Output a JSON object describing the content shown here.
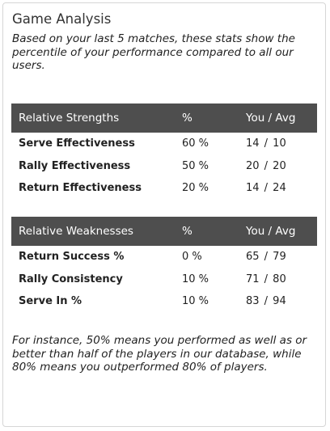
{
  "card": {
    "title": "Game Analysis",
    "intro": "Based on your last 5 matches, these stats show the percentile of your performance compared to all our users.",
    "outro": "For instance, 50% means you performed as well as or better than half of the players in our database, while 80% means you outperformed 80% of players."
  },
  "strengths": {
    "headers": [
      "Relative Strengths",
      "%",
      "You / Avg"
    ],
    "rows": [
      {
        "label": "Serve Effectiveness",
        "pct": "60 %",
        "you_avg": "14 / 10"
      },
      {
        "label": "Rally Effectiveness",
        "pct": "50 %",
        "you_avg": "20 / 20"
      },
      {
        "label": "Return Effectiveness",
        "pct": "20 %",
        "you_avg": "14 / 24"
      }
    ]
  },
  "weaknesses": {
    "headers": [
      "Relative Weaknesses",
      "%",
      "You / Avg"
    ],
    "rows": [
      {
        "label": "Return Success %",
        "pct": "0 %",
        "you_avg": "65 / 79"
      },
      {
        "label": "Rally Consistency",
        "pct": "10 %",
        "you_avg": "71 / 80"
      },
      {
        "label": "Serve In %",
        "pct": "10 %",
        "you_avg": "83 / 94"
      }
    ]
  },
  "colors": {
    "header_bg": "#4e4e4e",
    "header_text": "#ffffff",
    "border": "#d6d6d6"
  }
}
